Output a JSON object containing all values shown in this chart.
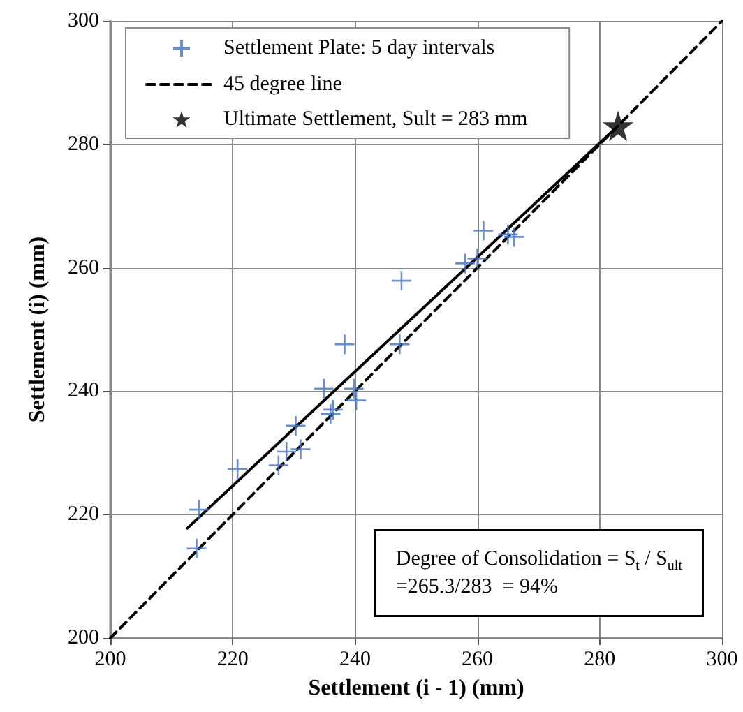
{
  "chart_data": {
    "type": "scatter",
    "xlabel": "Settlement (i - 1) (mm)",
    "ylabel": "Settlement (i) (mm)",
    "xlim": [
      200,
      300
    ],
    "ylim": [
      200,
      300
    ],
    "xticks": [
      200,
      220,
      240,
      260,
      280,
      300
    ],
    "yticks": [
      200,
      220,
      240,
      260,
      280,
      300
    ],
    "grid": true,
    "legend": "top left",
    "series": [
      {
        "name": "Settlement Plate: 5 day intervals",
        "marker": "cross",
        "color": "#4472c4",
        "x": [
          214.1,
          214.5,
          220.8,
          227.5,
          228.8,
          230.3,
          231.1,
          234.9,
          236.0,
          236.4,
          238.3,
          239.8,
          240.2,
          247.3,
          247.6,
          258.0,
          260.0,
          261.0,
          265.0,
          266.0
        ],
        "values": [
          214.5,
          220.8,
          227.4,
          228.0,
          230.2,
          234.4,
          230.6,
          240.4,
          236.3,
          237.0,
          247.6,
          240.4,
          238.5,
          247.6,
          257.9,
          260.7,
          261.5,
          266.0,
          265.4,
          265.0
        ]
      },
      {
        "name": "45 degree line",
        "type": "line",
        "line_style": "dashed",
        "marker": "none",
        "color": "#000000",
        "x": [
          200,
          300
        ],
        "values": [
          200,
          300
        ]
      },
      {
        "name": "Ultimate Settlement, Sult = 283 mm",
        "marker": "star",
        "color": "#000000",
        "x": [
          283
        ],
        "values": [
          283
        ]
      },
      {
        "type": "line",
        "line_style": "solid",
        "marker": "none",
        "color": "#000000",
        "x": [
          212.6,
          283
        ],
        "values": [
          217.8,
          283
        ]
      }
    ],
    "annotations": [
      "Degree of Consolidation = S$_{t}$ / S$_{ult}$",
      "=265.3/283  = 94%"
    ]
  }
}
